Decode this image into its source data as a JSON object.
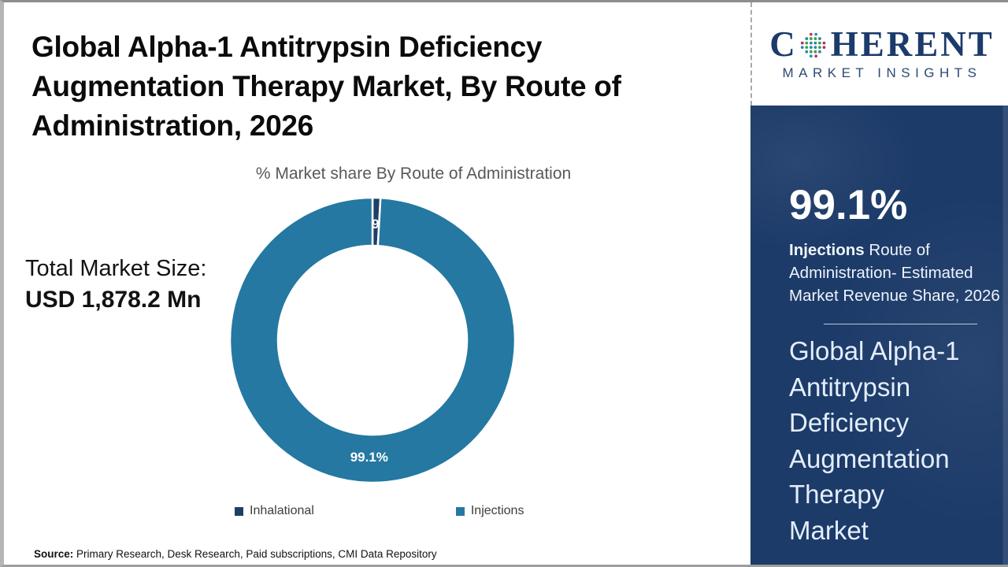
{
  "header": {
    "title_lines": [
      "Global Alpha-1 Antitrypsin Deficiency",
      "Augmentation Therapy Market, By Route of",
      "Administration, 2026"
    ]
  },
  "market_size": {
    "label": "Total Market Size:",
    "value": "USD 1,878.2 Mn"
  },
  "chart_data": {
    "type": "pie",
    "donut": true,
    "title": "% Market share By Route of Administration",
    "categories": [
      "Inhalational",
      "Injections"
    ],
    "values": [
      0.9,
      99.1
    ],
    "slice_labels": [
      "0.9%",
      "99.1%"
    ],
    "colors": [
      "#1F3E66",
      "#2478A1"
    ],
    "separator_color": "#FFFFFF",
    "legend_position": "bottom",
    "start_angle_deg": 0,
    "direction": "clockwise"
  },
  "source": {
    "label": "Source:",
    "text": " Primary Research, Desk Research, Paid subscriptions, CMI Data Repository"
  },
  "logo": {
    "text_start": "C",
    "text_end": "HERENT",
    "subtitle": "MARKET INSIGHTS",
    "brand_color": "#1C3A6B"
  },
  "sidebar": {
    "stat_value": "99.1%",
    "desc_bold": "Injections",
    "desc_rest": " Route of Administration- Estimated Market Revenue Share, 2026",
    "title_lines": [
      "Global Alpha-1",
      "Antitrypsin",
      "Deficiency",
      "Augmentation",
      "Therapy",
      "Market"
    ],
    "bg_color": "#1D3B69"
  }
}
